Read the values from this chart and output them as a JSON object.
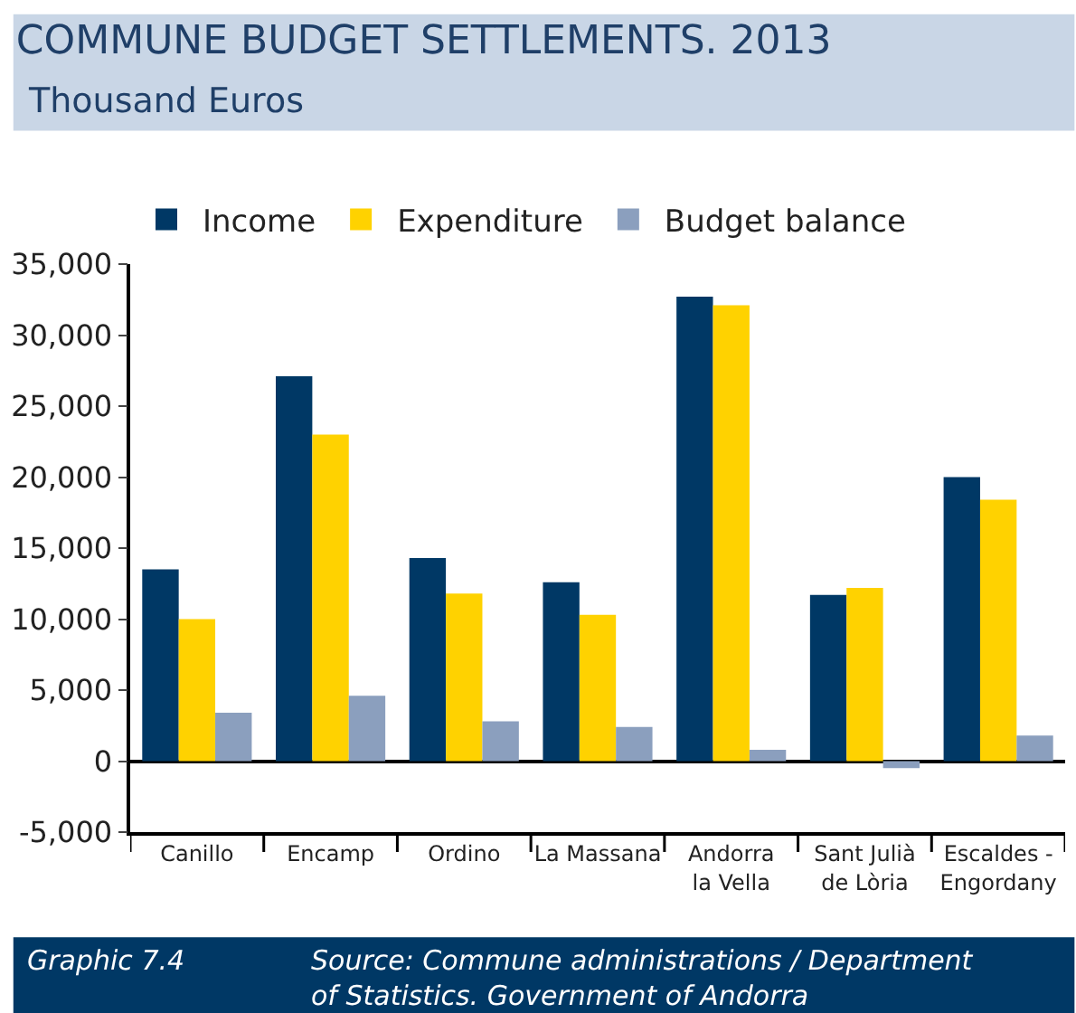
{
  "chart_data": {
    "type": "bar",
    "title": "COMMUNE BUDGET SETTLEMENTS. 2013",
    "subtitle": "Thousand Euros",
    "categories": [
      "Canillo",
      "Encamp",
      "Ordino",
      "La Massana",
      "Andorra\nla Vella",
      "Sant Julià\nde Lòria",
      "Escaldes -\nEngordany"
    ],
    "series": [
      {
        "name": "Income",
        "color": "#003865",
        "values": [
          13500,
          27100,
          14300,
          12600,
          32700,
          11700,
          20000
        ]
      },
      {
        "name": "Expenditure",
        "color": "#ffd200",
        "values": [
          10000,
          23000,
          11800,
          10300,
          32100,
          12200,
          18400
        ]
      },
      {
        "name": "Budget balance",
        "color": "#8b9fbe",
        "values": [
          3400,
          4600,
          2800,
          2400,
          800,
          -500,
          1800
        ]
      }
    ],
    "ylim": [
      -5000,
      35000
    ],
    "yticks": [
      {
        "value": -5000,
        "label": "-5,000"
      },
      {
        "value": 0,
        "label": "0"
      },
      {
        "value": 5000,
        "label": "5,000"
      },
      {
        "value": 10000,
        "label": "10,000"
      },
      {
        "value": 15000,
        "label": "15,000"
      },
      {
        "value": 20000,
        "label": "20,000"
      },
      {
        "value": 25000,
        "label": "25,000"
      },
      {
        "value": 30000,
        "label": "30,000"
      },
      {
        "value": 35000,
        "label": "35,000"
      }
    ],
    "legend": "top",
    "annotations": [
      "Graphic 7.4",
      "Source: Commune administrations / Department\nof Statistics. Government of Andorra"
    ]
  }
}
